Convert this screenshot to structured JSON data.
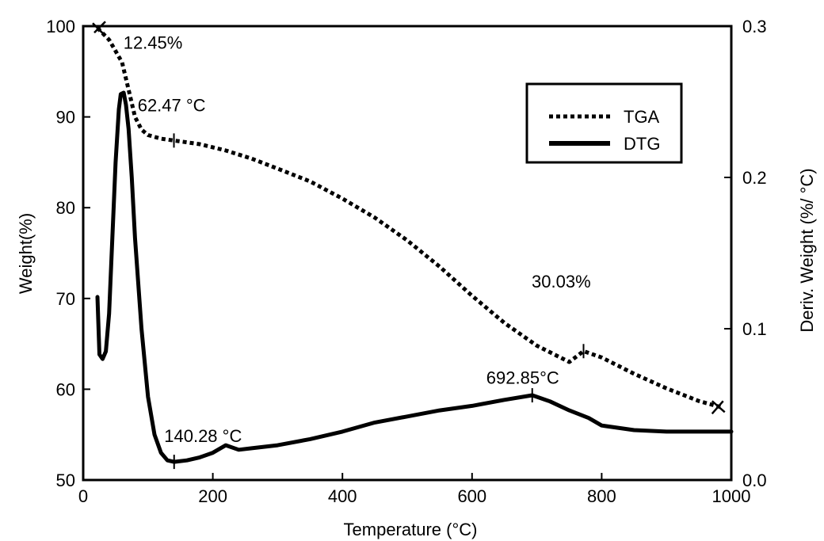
{
  "chart_data": {
    "type": "line",
    "xlabel": "Temperature (°C)",
    "ylabel_left": "Weight(%)",
    "ylabel_right": "Deriv. Weight (%/ °C)",
    "xlim": [
      0,
      1000
    ],
    "ylim_left": [
      50,
      100
    ],
    "ylim_right": [
      0.0,
      0.3
    ],
    "x_ticks": [
      0,
      200,
      400,
      600,
      800,
      1000
    ],
    "y_left_ticks": [
      50,
      60,
      70,
      80,
      90,
      100
    ],
    "y_right_ticks": [
      "0.0",
      "0.1",
      "0.2",
      "0.3"
    ],
    "grid": false,
    "legend": {
      "placement": "top-right",
      "entries": [
        "TGA",
        "DTG"
      ]
    },
    "series": [
      {
        "name": "TGA",
        "axis": "left",
        "style": "dotted",
        "x": [
          22,
          40,
          60,
          70,
          80,
          90,
          100,
          120,
          140,
          180,
          220,
          260,
          300,
          350,
          400,
          450,
          500,
          550,
          600,
          650,
          700,
          750,
          772,
          800,
          850,
          900,
          950,
          985
        ],
        "y": [
          99.8,
          98.5,
          96.0,
          93.0,
          90.0,
          88.6,
          88.0,
          87.6,
          87.4,
          87.0,
          86.3,
          85.4,
          84.3,
          82.9,
          81.0,
          78.9,
          76.4,
          73.5,
          70.3,
          67.3,
          64.8,
          63.0,
          64.2,
          63.5,
          61.7,
          60.1,
          58.7,
          58.0
        ]
      },
      {
        "name": "DTG",
        "axis": "right",
        "style": "solid",
        "x": [
          22,
          25,
          30,
          35,
          40,
          45,
          50,
          55,
          58,
          62.47,
          66,
          70,
          75,
          80,
          90,
          100,
          110,
          120,
          130,
          140.28,
          160,
          180,
          200,
          220,
          240,
          260,
          300,
          350,
          400,
          450,
          500,
          550,
          600,
          650,
          692.85,
          720,
          750,
          780,
          800,
          850,
          900,
          950,
          1000
        ],
        "y": [
          0.121,
          0.083,
          0.08,
          0.085,
          0.11,
          0.16,
          0.21,
          0.245,
          0.255,
          0.256,
          0.248,
          0.232,
          0.2,
          0.16,
          0.1,
          0.055,
          0.03,
          0.018,
          0.013,
          0.012,
          0.013,
          0.015,
          0.018,
          0.023,
          0.02,
          0.021,
          0.023,
          0.027,
          0.032,
          0.038,
          0.042,
          0.046,
          0.049,
          0.053,
          0.056,
          0.052,
          0.046,
          0.041,
          0.036,
          0.033,
          0.032,
          0.032,
          0.032
        ]
      }
    ],
    "annotations": [
      {
        "text": "12.45%",
        "x": 62,
        "y_left": 97.5,
        "anchor": "start"
      },
      {
        "text": "62.47 °C",
        "x": 84,
        "y_left": 90.6,
        "anchor": "start"
      },
      {
        "text": "140.28 °C",
        "x": 125,
        "y_left": 54.2,
        "anchor": "start"
      },
      {
        "text": "30.03%",
        "x": 692,
        "y_left": 71.2,
        "anchor": "start"
      },
      {
        "text": "692.85°C",
        "x": 622,
        "y_left": 60.6,
        "anchor": "start"
      }
    ],
    "tga_markers": [
      {
        "x": 140,
        "y_left": 87.4
      },
      {
        "x": 772,
        "y_left": 64.2
      }
    ],
    "dtg_markers": [
      {
        "x": 140.28,
        "y_right": 0.012
      },
      {
        "x": 692.85,
        "y_right": 0.056
      }
    ],
    "end_markers": [
      {
        "x": 22,
        "y_left": 99.8
      },
      {
        "x": 985,
        "y_left": 58.0
      }
    ]
  }
}
